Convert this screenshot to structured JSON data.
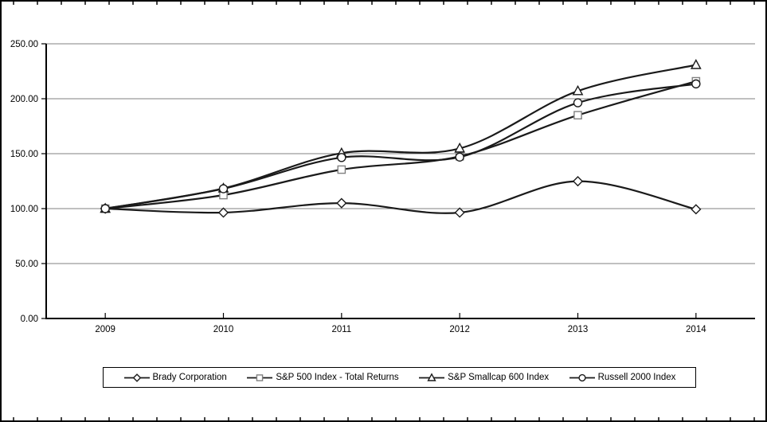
{
  "page": {
    "background": "#ffffff",
    "frame_border_color": "#000000"
  },
  "chart_data": {
    "type": "line",
    "title": "",
    "xlabel": "",
    "ylabel": "",
    "categories": [
      "2009",
      "2010",
      "2011",
      "2012",
      "2013",
      "2014"
    ],
    "series": [
      {
        "name": "Brady Corporation",
        "marker": "diamond",
        "values": [
          100.0,
          96.4,
          105.0,
          96.4,
          124.9,
          99.4
        ]
      },
      {
        "name": "S&P 500 Index - Total Returns",
        "marker": "square",
        "values": [
          100.0,
          112.3,
          135.5,
          147.6,
          185.0,
          215.9
        ]
      },
      {
        "name": "S&P Smallcap 600 Index",
        "marker": "triangle",
        "values": [
          100.0,
          118.4,
          150.5,
          154.8,
          207.0,
          230.8
        ]
      },
      {
        "name": "Russell 2000 Index",
        "marker": "circle",
        "values": [
          100.0,
          118.1,
          146.5,
          146.9,
          196.3,
          213.5
        ]
      }
    ],
    "ylim": [
      0,
      250
    ],
    "y_tick_values": [
      250,
      200,
      150,
      100,
      50,
      0
    ],
    "y_tick_labels": [
      "250.00",
      "200.00",
      "150.00",
      "100.00",
      "50.00",
      "0.00"
    ],
    "grid": true,
    "smoothed_lines": true,
    "legend_position": "bottom",
    "colors": {
      "line": "#1a1a1a",
      "grid": "#808080",
      "axis": "#000000",
      "marker_fill": "#ffffff",
      "marker_stroke_default": "#1a1a1a",
      "marker_stroke_square": "#808080"
    }
  }
}
